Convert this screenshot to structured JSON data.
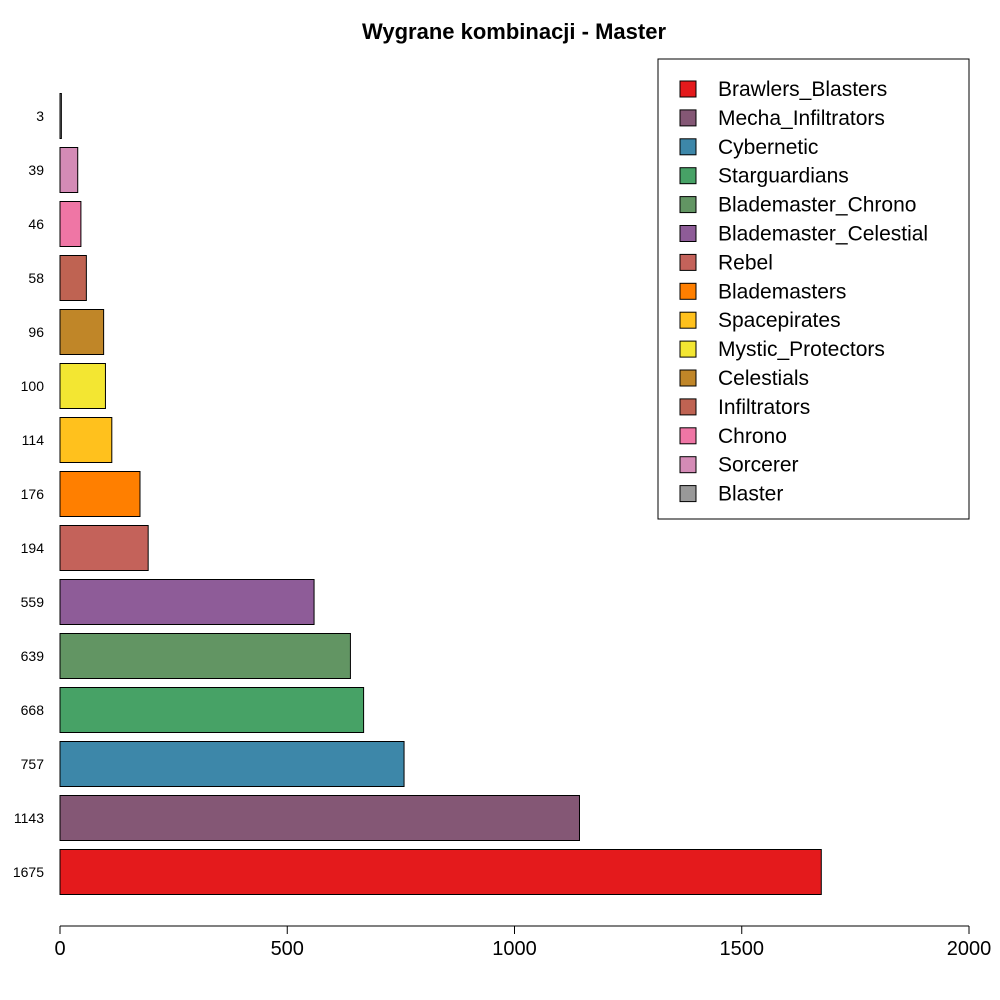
{
  "chart_data": {
    "type": "bar",
    "orientation": "horizontal",
    "title": "Wygrane kombinacji - Master",
    "xlabel": "",
    "ylabel": "",
    "xlim": [
      0,
      2000
    ],
    "x_ticks": [
      0,
      500,
      1000,
      1500,
      2000
    ],
    "grid": false,
    "legend_position": "top-right",
    "series": [
      {
        "name": "Brawlers_Blasters",
        "value": 1675,
        "label": "1675",
        "color": "#E41A1C"
      },
      {
        "name": "Mecha_Infiltrators",
        "value": 1143,
        "label": "1143",
        "color": "#845775"
      },
      {
        "name": "Cybernetic",
        "value": 757,
        "label": "757",
        "color": "#3D87A9"
      },
      {
        "name": "Starguardians",
        "value": 668,
        "label": "668",
        "color": "#47A266"
      },
      {
        "name": "Blademaster_Chrono",
        "value": 639,
        "label": "639",
        "color": "#629563"
      },
      {
        "name": "Blademaster_Celestial",
        "value": 559,
        "label": "559",
        "color": "#8E5C98"
      },
      {
        "name": "Rebel",
        "value": 194,
        "label": "194",
        "color": "#C4625A"
      },
      {
        "name": "Blademasters",
        "value": 176,
        "label": "176",
        "color": "#FF7F00"
      },
      {
        "name": "Spacepirates",
        "value": 114,
        "label": "114",
        "color": "#FFC11D"
      },
      {
        "name": "Mystic_Protectors",
        "value": 100,
        "label": "100",
        "color": "#F3E632"
      },
      {
        "name": "Celestials",
        "value": 96,
        "label": "96",
        "color": "#C08628"
      },
      {
        "name": "Infiltrators",
        "value": 58,
        "label": "58",
        "color": "#BF6352"
      },
      {
        "name": "Chrono",
        "value": 46,
        "label": "46",
        "color": "#EF76A5"
      },
      {
        "name": "Sorcerer",
        "value": 39,
        "label": "39",
        "color": "#D48BB6"
      },
      {
        "name": "Blaster",
        "value": 3,
        "label": "3",
        "color": "#999999"
      }
    ]
  }
}
